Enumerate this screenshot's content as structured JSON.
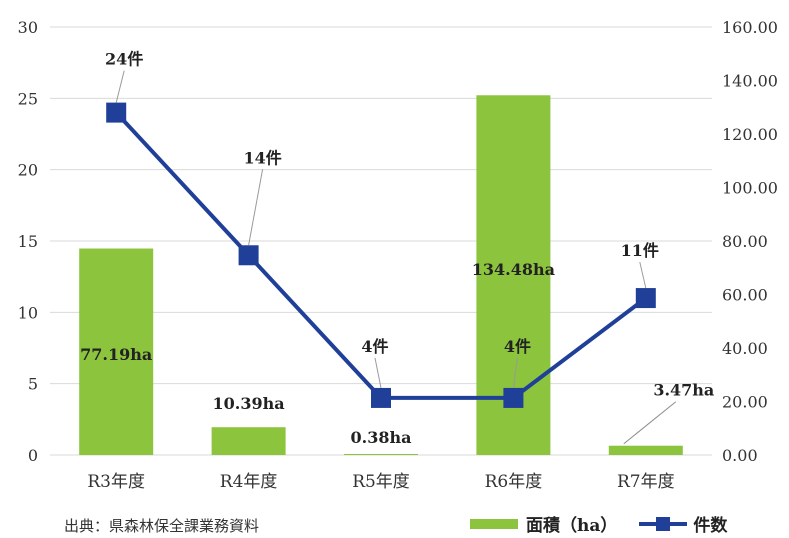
{
  "chart_data": {
    "type": "bar+line",
    "categories": [
      "R3年度",
      "R4年度",
      "R5年度",
      "R6年度",
      "R7年度"
    ],
    "series": [
      {
        "name": "面積（ha）",
        "type": "bar",
        "axis": "right",
        "values": [
          77.19,
          10.39,
          0.38,
          134.48,
          3.47
        ],
        "labels": [
          "77.19ha",
          "10.39ha",
          "0.38ha",
          "134.48ha",
          "3.47ha"
        ]
      },
      {
        "name": "件数",
        "type": "line",
        "axis": "left",
        "values": [
          24,
          14,
          4,
          4,
          11
        ],
        "labels": [
          "24件",
          "14件",
          "4件",
          "4件",
          "11件"
        ]
      }
    ],
    "left_axis": {
      "ticks": [
        "0",
        "5",
        "10",
        "15",
        "20",
        "25",
        "30"
      ],
      "ylim": [
        0,
        30
      ]
    },
    "right_axis": {
      "ticks": [
        "0.00",
        "20.00",
        "40.00",
        "60.00",
        "80.00",
        "100.00",
        "120.00",
        "140.00",
        "160.00"
      ],
      "ylim": [
        0,
        160
      ]
    },
    "grid": true,
    "legend_position": "bottom-right",
    "colors": {
      "bar": "#8cc43e",
      "line": "#1f3f99"
    }
  },
  "source": "出典：県森林保全課業務資料",
  "legend": {
    "bar": "面積（ha）",
    "line": "件数"
  }
}
